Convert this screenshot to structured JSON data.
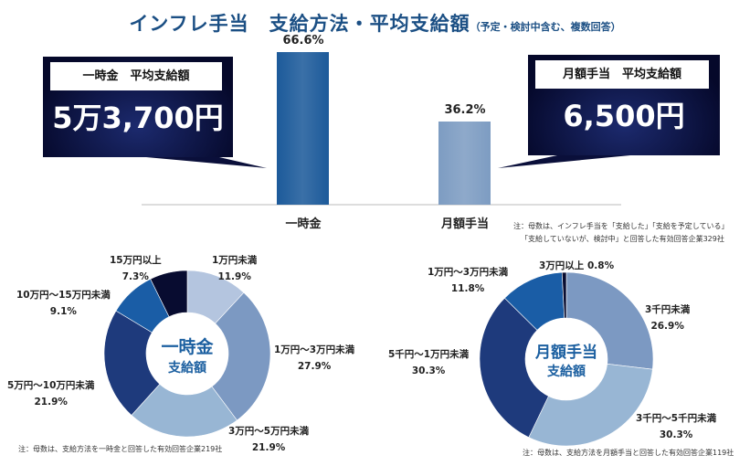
{
  "title": "インフレ手当　支給方法・平均支給額",
  "subtitle": "（予定・検討中含む、複数回答）",
  "callouts": [
    {
      "label": "一時金　平均支給額",
      "value": "5万3,700円"
    },
    {
      "label": "月額手当　平均支給額",
      "value": "6,500円"
    }
  ],
  "notes": {
    "bar_line1": "注：母数は、インフレ手当を「支給した」「支給を予定している」",
    "bar_line2": "「支給していないが、検討中」と回答した有効回答企業329社",
    "donut1": "注：母数は、支給方法を一時金と回答した有効回答企業219社",
    "donut2": "注：母数は、支給方法を月額手当と回答した有効回答企業119社"
  },
  "chart_data": [
    {
      "type": "bar",
      "title": "支給方法",
      "categories": [
        "一時金",
        "月額手当"
      ],
      "values": [
        66.6,
        36.2
      ],
      "value_labels": [
        "66.6%",
        "36.2%"
      ],
      "colors": [
        "#1c5a9a",
        "#7d9cc2"
      ],
      "ylim": [
        0,
        70
      ]
    },
    {
      "type": "pie",
      "title": "一時金 支給額",
      "center_line1": "一時金",
      "center_line2": "支給額",
      "labels": [
        "1万円未満",
        "1万円～3万円未満",
        "3万円～5万円未満",
        "5万円～10万円未満",
        "10万円～15万円未満",
        "15万円以上"
      ],
      "values": [
        11.9,
        27.9,
        21.9,
        21.9,
        9.1,
        7.3
      ],
      "value_labels": [
        "11.9%",
        "27.9%",
        "21.9%",
        "21.9%",
        "9.1%",
        "7.3%"
      ],
      "colors": [
        "#b4c5df",
        "#7c99c2",
        "#98b6d4",
        "#1e3a7c",
        "#1a5da6",
        "#080c30"
      ]
    },
    {
      "type": "pie",
      "title": "月額手当 支給額",
      "center_line1": "月額手当",
      "center_line2": "支給額",
      "labels": [
        "3千円未満",
        "3千円～5千円未満",
        "5千円～1万円未満",
        "1万円～3万円未満",
        "3万円以上"
      ],
      "values": [
        26.9,
        30.3,
        30.3,
        11.8,
        0.8
      ],
      "value_labels": [
        "26.9%",
        "30.3%",
        "30.3%",
        "11.8%",
        "0.8%"
      ],
      "colors": [
        "#7c99c2",
        "#98b6d4",
        "#1e3a7c",
        "#1a5da6",
        "#080c30"
      ]
    }
  ]
}
